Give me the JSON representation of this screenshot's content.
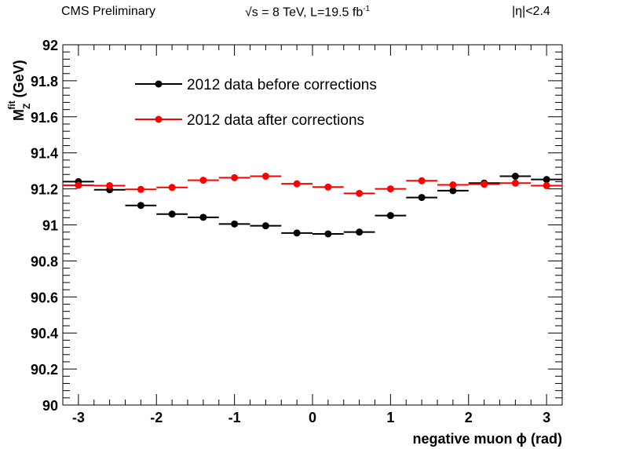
{
  "header": {
    "left": "CMS Preliminary",
    "center_pre": "√s = 8 TeV, L=19.5 fb",
    "center_sup": "-1",
    "right": "|η|<2.4"
  },
  "chart_data": {
    "type": "scatter",
    "xlabel": "negative muon ϕ (rad)",
    "ylabel_main": "M",
    "ylabel_sup": "fit",
    "ylabel_sub": "Z",
    "ylabel_unit": "(GeV)",
    "xlim": [
      -3.2,
      3.2
    ],
    "ylim": [
      90,
      92
    ],
    "x_ticks": [
      -3,
      -2,
      -1,
      0,
      1,
      2,
      3
    ],
    "x_tick_labels": [
      "-3",
      "-2",
      "-1",
      "0",
      "1",
      "2",
      "3"
    ],
    "y_ticks": [
      90,
      90.2,
      90.4,
      90.6,
      90.8,
      91,
      91.2,
      91.4,
      91.6,
      91.8,
      92
    ],
    "y_tick_labels": [
      "90",
      "90.2",
      "90.4",
      "90.6",
      "90.8",
      "91",
      "91.2",
      "91.4",
      "91.6",
      "91.8",
      "92"
    ],
    "bin_half_width": 0.2,
    "legend_position": "top-left",
    "series": [
      {
        "name": "2012 data before corrections",
        "color": "#000000",
        "x": [
          -3.0,
          -2.6,
          -2.2,
          -1.8,
          -1.4,
          -1.0,
          -0.6,
          -0.2,
          0.2,
          0.6,
          1.0,
          1.4,
          1.8,
          2.2,
          2.6,
          3.0
        ],
        "y": [
          91.24,
          91.195,
          91.108,
          91.06,
          91.042,
          91.005,
          90.995,
          90.955,
          90.95,
          90.96,
          91.052,
          91.152,
          91.19,
          91.232,
          91.27,
          91.252
        ]
      },
      {
        "name": "2012 data after corrections",
        "color": "#ff0000",
        "x": [
          -3.0,
          -2.6,
          -2.2,
          -1.8,
          -1.4,
          -1.0,
          -0.6,
          -0.2,
          0.2,
          0.6,
          1.0,
          1.4,
          1.8,
          2.2,
          2.6,
          3.0
        ],
        "y": [
          91.22,
          91.218,
          91.197,
          91.208,
          91.248,
          91.262,
          91.27,
          91.228,
          91.21,
          91.175,
          91.2,
          91.245,
          91.222,
          91.226,
          91.232,
          91.218
        ]
      }
    ]
  }
}
